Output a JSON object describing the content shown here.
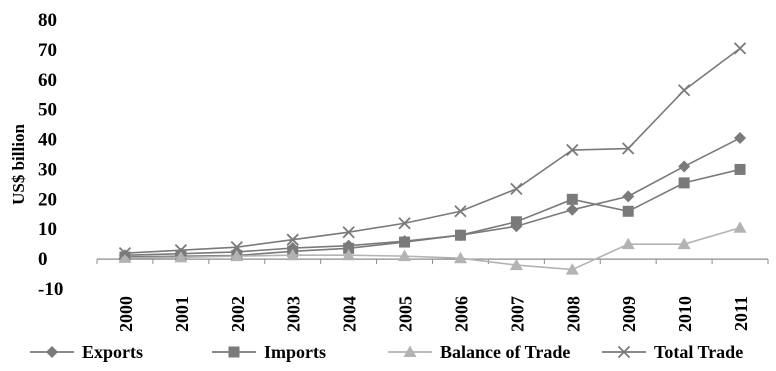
{
  "chart_data": {
    "type": "line",
    "ylabel": "US$ billion",
    "ylim": [
      -10,
      80
    ],
    "yticks": [
      "80",
      "70",
      "60",
      "50",
      "40",
      "30",
      "20",
      "10",
      "0",
      "-10"
    ],
    "categories": [
      "2000",
      "2001",
      "2002",
      "2003",
      "2004",
      "2005",
      "2006",
      "2007",
      "2008",
      "2009",
      "2010",
      "2011"
    ],
    "legend_position": "bottom",
    "series": [
      {
        "name": "Exports",
        "marker": "diamond",
        "color": "#7a7a7a",
        "values": [
          1.3,
          1.8,
          2.4,
          3.7,
          4.5,
          6.0,
          8.0,
          11.0,
          16.5,
          21.0,
          31.0,
          40.5
        ]
      },
      {
        "name": "Imports",
        "marker": "square",
        "color": "#7a7a7a",
        "values": [
          0.7,
          1.0,
          1.2,
          2.6,
          3.6,
          5.7,
          8.0,
          12.5,
          20.0,
          16.0,
          25.5,
          30.0
        ]
      },
      {
        "name": "Balance of Trade",
        "marker": "triangle",
        "color": "#b3b3b3",
        "values": [
          0.4,
          0.6,
          1.0,
          1.3,
          1.3,
          1.0,
          0.3,
          -2.0,
          -3.5,
          5.0,
          5.0,
          10.5
        ]
      },
      {
        "name": "Total Trade",
        "marker": "x",
        "color": "#7a7a7a",
        "values": [
          2.0,
          3.0,
          4.0,
          6.5,
          9.0,
          12.0,
          16.0,
          23.5,
          36.5,
          37.0,
          56.5,
          70.5
        ]
      }
    ]
  }
}
